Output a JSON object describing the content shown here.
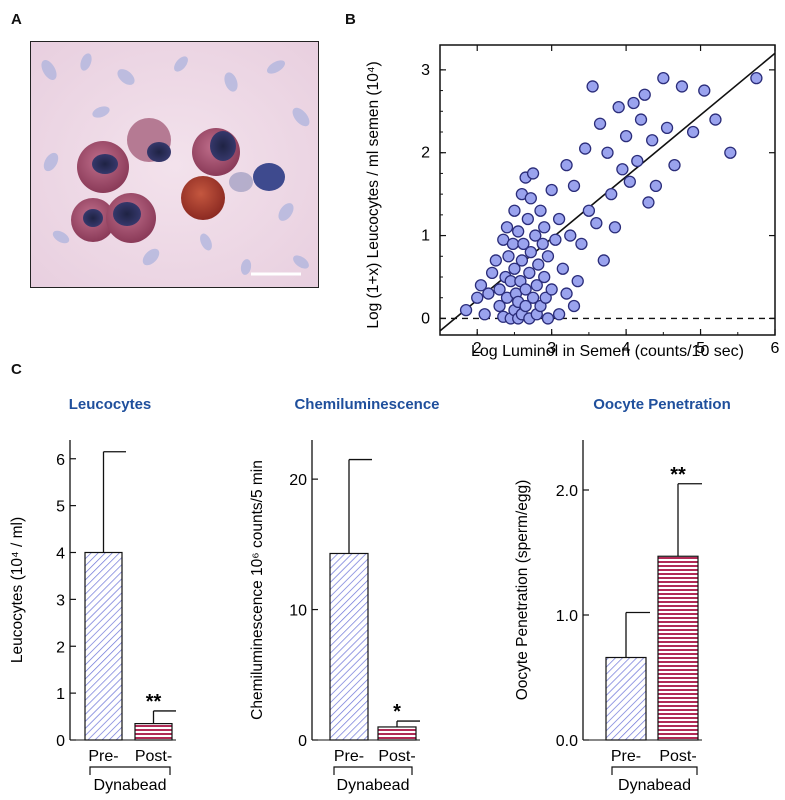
{
  "panels": {
    "a": "A",
    "b": "B",
    "c": "C"
  },
  "colors": {
    "blue_fill": "#9aa3ee",
    "blue_stroke": "#2b2d7a",
    "pink_line": "#b02a56",
    "title_blue": "#1f4f9c"
  },
  "chart_data": [
    {
      "type": "scatter",
      "panel": "B",
      "xlabel": "Log Luminol in Semen (counts/10 sec)",
      "ylabel": "Log (1+x)  Leucocytes / ml semen (10⁴)",
      "xlim": [
        1.5,
        6
      ],
      "ylim": [
        -0.2,
        3.3
      ],
      "xticks": [
        "2",
        "3",
        "4",
        "5",
        "6"
      ],
      "yticks": [
        "0",
        "1",
        "2",
        "3"
      ],
      "fit_line": {
        "x": [
          1.5,
          6
        ],
        "y": [
          -0.15,
          3.2
        ]
      },
      "baseline_y": 0,
      "points": [
        [
          1.85,
          0.1
        ],
        [
          2.0,
          0.25
        ],
        [
          2.05,
          0.4
        ],
        [
          2.1,
          0.05
        ],
        [
          2.15,
          0.3
        ],
        [
          2.2,
          0.55
        ],
        [
          2.25,
          0.7
        ],
        [
          2.3,
          0.15
        ],
        [
          2.3,
          0.35
        ],
        [
          2.35,
          0.95
        ],
        [
          2.35,
          0.02
        ],
        [
          2.38,
          0.5
        ],
        [
          2.4,
          1.1
        ],
        [
          2.4,
          0.25
        ],
        [
          2.42,
          0.75
        ],
        [
          2.45,
          0.0
        ],
        [
          2.45,
          0.45
        ],
        [
          2.48,
          0.9
        ],
        [
          2.5,
          1.3
        ],
        [
          2.5,
          0.1
        ],
        [
          2.5,
          0.6
        ],
        [
          2.52,
          0.3
        ],
        [
          2.55,
          1.05
        ],
        [
          2.55,
          0.0
        ],
        [
          2.55,
          0.2
        ],
        [
          2.58,
          0.45
        ],
        [
          2.6,
          0.7
        ],
        [
          2.6,
          1.5
        ],
        [
          2.6,
          0.05
        ],
        [
          2.62,
          0.9
        ],
        [
          2.65,
          1.7
        ],
        [
          2.65,
          0.35
        ],
        [
          2.65,
          0.15
        ],
        [
          2.68,
          1.2
        ],
        [
          2.7,
          0.55
        ],
        [
          2.7,
          0.0
        ],
        [
          2.72,
          0.8
        ],
        [
          2.72,
          1.45
        ],
        [
          2.75,
          0.25
        ],
        [
          2.75,
          1.75
        ],
        [
          2.78,
          1.0
        ],
        [
          2.8,
          0.4
        ],
        [
          2.8,
          0.05
        ],
        [
          2.82,
          0.65
        ],
        [
          2.85,
          1.3
        ],
        [
          2.85,
          0.15
        ],
        [
          2.88,
          0.9
        ],
        [
          2.9,
          0.5
        ],
        [
          2.9,
          1.1
        ],
        [
          2.92,
          0.25
        ],
        [
          2.95,
          0.0
        ],
        [
          2.95,
          0.75
        ],
        [
          3.0,
          0.35
        ],
        [
          3.0,
          1.55
        ],
        [
          3.05,
          0.95
        ],
        [
          3.1,
          0.05
        ],
        [
          3.1,
          1.2
        ],
        [
          3.15,
          0.6
        ],
        [
          3.2,
          1.85
        ],
        [
          3.2,
          0.3
        ],
        [
          3.25,
          1.0
        ],
        [
          3.3,
          0.15
        ],
        [
          3.3,
          1.6
        ],
        [
          3.35,
          0.45
        ],
        [
          3.4,
          0.9
        ],
        [
          3.45,
          2.05
        ],
        [
          3.5,
          1.3
        ],
        [
          3.55,
          2.8
        ],
        [
          3.6,
          1.15
        ],
        [
          3.65,
          2.35
        ],
        [
          3.7,
          0.7
        ],
        [
          3.75,
          2.0
        ],
        [
          3.8,
          1.5
        ],
        [
          3.85,
          1.1
        ],
        [
          3.9,
          2.55
        ],
        [
          3.95,
          1.8
        ],
        [
          4.0,
          2.2
        ],
        [
          4.05,
          1.65
        ],
        [
          4.1,
          2.6
        ],
        [
          4.15,
          1.9
        ],
        [
          4.2,
          2.4
        ],
        [
          4.25,
          2.7
        ],
        [
          4.3,
          1.4
        ],
        [
          4.35,
          2.15
        ],
        [
          4.4,
          1.6
        ],
        [
          4.5,
          2.9
        ],
        [
          4.55,
          2.3
        ],
        [
          4.65,
          1.85
        ],
        [
          4.75,
          2.8
        ],
        [
          4.9,
          2.25
        ],
        [
          5.05,
          2.75
        ],
        [
          5.2,
          2.4
        ],
        [
          5.4,
          2.0
        ],
        [
          5.75,
          2.9
        ]
      ]
    },
    {
      "type": "bar",
      "panel": "C",
      "title": "Leucocytes",
      "ylabel": "Leucocytes (10⁴ / ml)",
      "categories": [
        "Pre-",
        "Post-"
      ],
      "group_label": "Dynabead",
      "values": [
        4.0,
        0.35
      ],
      "errors": [
        2.15,
        0.27
      ],
      "significance": [
        "",
        "**"
      ],
      "ylim": [
        0,
        6.4
      ],
      "yticks": [
        "0",
        "1",
        "2",
        "3",
        "4",
        "5",
        "6"
      ]
    },
    {
      "type": "bar",
      "panel": "C",
      "title": "Chemiluminescence",
      "ylabel": "Chemiluminescence 10⁶ counts/5 min",
      "categories": [
        "Pre-",
        "Post-"
      ],
      "group_label": "",
      "values": [
        14.3,
        1.0
      ],
      "errors": [
        7.2,
        0.45
      ],
      "significance": [
        "",
        "*"
      ],
      "ylim": [
        0,
        23
      ],
      "yticks": [
        "0",
        "10",
        "20"
      ]
    },
    {
      "type": "bar",
      "panel": "C",
      "title": "Oocyte Penetration",
      "ylabel": "Oocyte Penetration (sperm/egg)",
      "categories": [
        "Pre-",
        "Post-"
      ],
      "group_label": "Dynabead",
      "values": [
        0.66,
        1.47
      ],
      "errors": [
        0.36,
        0.58
      ],
      "significance": [
        "",
        "**"
      ],
      "ylim": [
        0,
        2.4
      ],
      "yticks": [
        "0.0",
        "1.0",
        "2.0"
      ]
    }
  ]
}
